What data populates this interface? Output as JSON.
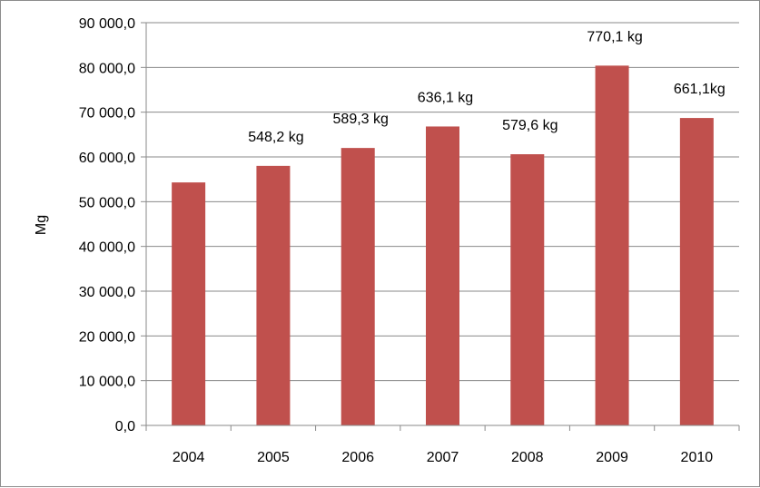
{
  "chart_data": {
    "type": "bar",
    "categories": [
      "2004",
      "2005",
      "2006",
      "2007",
      "2008",
      "2009",
      "2010"
    ],
    "values": [
      54300,
      58000,
      62000,
      66800,
      60600,
      80400,
      68700
    ],
    "data_labels": [
      "",
      "548,2 kg",
      "589,3 kg",
      "636,1 kg",
      "579,6 kg",
      "770,1 kg",
      "661,1kg"
    ],
    "title": "",
    "xlabel": "",
    "ylabel": "Mg",
    "ylim": [
      0,
      90000
    ],
    "yticks": [
      0,
      10000,
      20000,
      30000,
      40000,
      50000,
      60000,
      70000,
      80000,
      90000
    ],
    "ytick_labels": [
      "0,0",
      "10 000,0",
      "20 000,0",
      "30 000,0",
      "40 000,0",
      "50 000,0",
      "60 000,0",
      "70 000,0",
      "80 000,0",
      "90 000,0"
    ],
    "grid": true,
    "legend": "none",
    "bar_color": "#c0504d"
  }
}
